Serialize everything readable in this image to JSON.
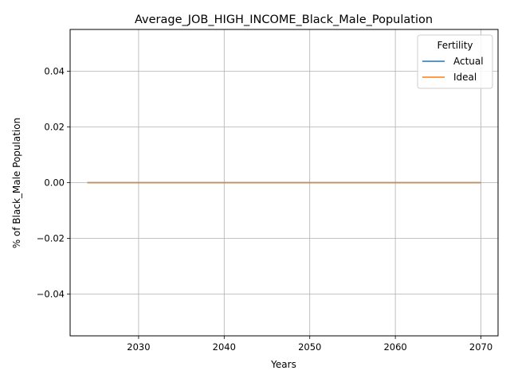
{
  "chart_data": {
    "type": "line",
    "title": "Average_JOB_HIGH_INCOME_Black_Male_Population",
    "xlabel": "Years",
    "ylabel": "% of Black_Male Population",
    "xlim": [
      2022,
      2072
    ],
    "ylim": [
      -0.055,
      0.055
    ],
    "x_ticks": [
      2030,
      2040,
      2050,
      2060,
      2070
    ],
    "x_tick_labels": [
      "2030",
      "2040",
      "2050",
      "2060",
      "2070"
    ],
    "y_ticks": [
      -0.04,
      -0.02,
      0.0,
      0.02,
      0.04
    ],
    "y_tick_labels": [
      "−0.04",
      "−0.02",
      "0.00",
      "0.02",
      "0.04"
    ],
    "grid": true,
    "legend": {
      "title": "Fertility",
      "placement": "top-right"
    },
    "series": [
      {
        "name": "Actual",
        "color": "#1f77b4",
        "x": [
          2024,
          2070
        ],
        "y": [
          0,
          0
        ]
      },
      {
        "name": "Ideal",
        "color": "#ff7f0e",
        "x": [
          2024,
          2070
        ],
        "y": [
          0,
          0
        ]
      }
    ]
  }
}
